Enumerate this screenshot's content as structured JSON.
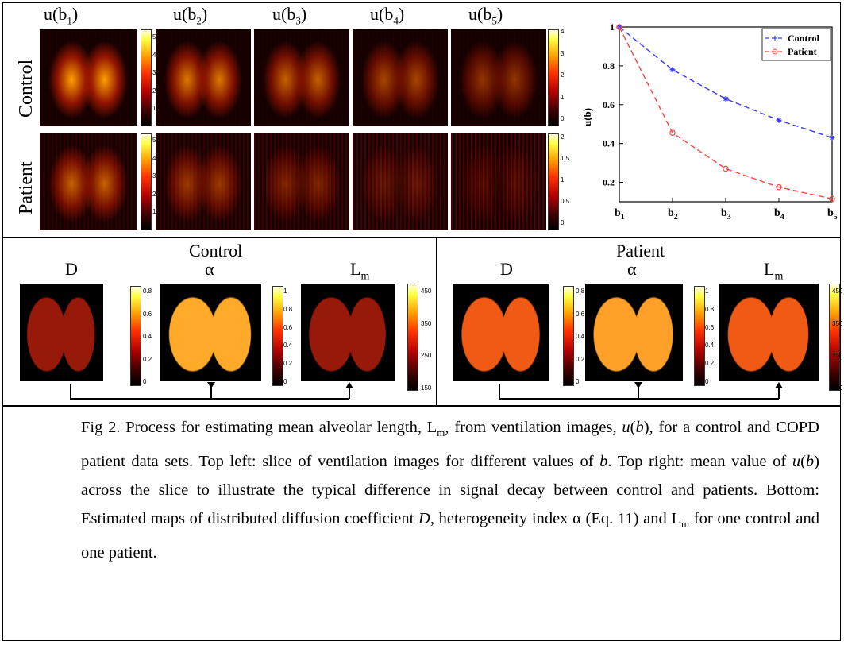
{
  "top_left": {
    "column_labels": [
      "u(b1)",
      "u(b2)",
      "u(b3)",
      "u(b4)",
      "u(b5)"
    ],
    "column_label_base": [
      "u(b",
      "u(b",
      "u(b",
      "u(b",
      "u(b"
    ],
    "column_label_sub": [
      "1",
      "2",
      "3",
      "4",
      "5"
    ],
    "row_labels": [
      "Control",
      "Patient"
    ],
    "control_colorbar_ticks_left": [
      "5",
      "4",
      "3",
      "2",
      "1"
    ],
    "control_colorbar_ticks_right": [
      "4",
      "3",
      "2",
      "1",
      "0"
    ],
    "patient_colorbar_ticks_left": [
      "5",
      "4",
      "3",
      "2",
      "1"
    ],
    "patient_colorbar_ticks_right": [
      "2",
      "1.5",
      "1",
      "0.5",
      "0"
    ]
  },
  "chart_data": {
    "type": "line",
    "categories": [
      "b1",
      "b2",
      "b3",
      "b4",
      "b5"
    ],
    "category_base": "b",
    "category_subs": [
      "1",
      "2",
      "3",
      "4",
      "5"
    ],
    "series": [
      {
        "name": "Control",
        "values": [
          1.0,
          0.78,
          0.63,
          0.52,
          0.43
        ],
        "color": "#3a3aff",
        "marker": "star"
      },
      {
        "name": "Patient",
        "values": [
          1.0,
          0.455,
          0.27,
          0.175,
          0.115
        ],
        "color": "#ff4444",
        "marker": "circle"
      }
    ],
    "ylabel": "u(b)",
    "ylim": [
      0.1,
      1.0
    ],
    "yticks": [
      "0.2",
      "0.4",
      "0.6",
      "0.8",
      "1"
    ],
    "ytick_values": [
      0.2,
      0.4,
      0.6,
      0.8,
      1.0
    ],
    "legend_position": "top-right",
    "grid": false
  },
  "bottom": {
    "control_title": "Control",
    "patient_title": "Patient",
    "map_labels": [
      "D",
      "α",
      "Lm"
    ],
    "lm_base": "L",
    "lm_sub": "m",
    "d_ticks": [
      "0.8",
      "0.6",
      "0.4",
      "0.2",
      "0"
    ],
    "alpha_ticks": [
      "1",
      "0.8",
      "0.6",
      "0.4",
      "0.2",
      "0"
    ],
    "lm_ticks": [
      "450",
      "350",
      "250",
      "150"
    ]
  },
  "caption": {
    "text": "Fig 2. Process for estimating mean alveolar length, Lm, from ventilation images, u(b), for a control and COPD patient data sets. Top left: slice of ventilation images for different values of b. Top right: mean value of u(b) across the slice to illustrate the typical difference in signal decay between control and patients. Bottom: Estimated maps of distributed diffusion coefficient D, heterogeneity index α (Eq. 11) and Lm for one control and one patient.",
    "parts": {
      "p1": "Fig 2. Process for estimating mean alveolar length, L",
      "p1_sub": "m",
      "p2": ", from ventilation images, ",
      "p2_it": "u",
      "p2b": "(",
      "p2_it2": "b",
      "p3": "), for a control and COPD patient data sets. Top left: slice of ventilation images for different values of ",
      "p3_it": "b",
      "p4": ". Top right: mean value of ",
      "p4_it": "u",
      "p4b": "(",
      "p4_it2": "b",
      "p5": ") across the slice to illustrate the typical difference in signal decay between control and patients. Bottom: Estimated maps of distributed diffusion coefficient ",
      "p5_it": "D",
      "p6": ", heterogeneity index α (Eq. 11) and L",
      "p6_sub": "m",
      "p7": " for one control and one patient."
    }
  },
  "colors": {
    "control_line": "#3a3aff",
    "patient_line": "#ff4444",
    "hot_map": "#ff3000"
  }
}
